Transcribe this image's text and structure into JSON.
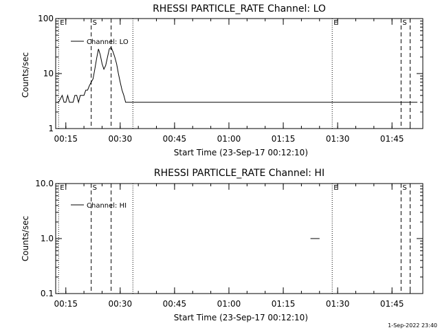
{
  "footer": {
    "stamp": "1-Sep-2022 23:40"
  },
  "chart_data": [
    {
      "type": "line",
      "title": "RHESSI PARTICLE_RATE Channel: LO",
      "xlabel": "Start Time (23-Sep-17 00:12:10)",
      "ylabel": "Counts/sec",
      "yscale": "log",
      "ylim": [
        1,
        100
      ],
      "y_ticks": [
        {
          "v": 1,
          "label": "1"
        },
        {
          "v": 10,
          "label": "10"
        },
        {
          "v": 100,
          "label": "100"
        }
      ],
      "xlim_min": [
        12.2,
        113.5
      ],
      "x_ticks": [
        {
          "v": 15,
          "label": "00:15"
        },
        {
          "v": 30,
          "label": "00:30"
        },
        {
          "v": 45,
          "label": "00:45"
        },
        {
          "v": 60,
          "label": "01:00"
        },
        {
          "v": 75,
          "label": "01:15"
        },
        {
          "v": 90,
          "label": "01:30"
        },
        {
          "v": 105,
          "label": "01:45"
        }
      ],
      "legend": {
        "label": "Channel: LO",
        "placement": "top-left"
      },
      "markers": [
        {
          "x": 13.0,
          "style": "dotted",
          "label": "E"
        },
        {
          "x": 22.0,
          "style": "dashed",
          "label": "S"
        },
        {
          "x": 27.5,
          "style": "dashed",
          "label": ""
        },
        {
          "x": 33.5,
          "style": "dotted",
          "label": ""
        },
        {
          "x": 88.5,
          "style": "dotted",
          "label": "E"
        },
        {
          "x": 107.5,
          "style": "dashed",
          "label": "S"
        },
        {
          "x": 110.0,
          "style": "dashed",
          "label": ""
        }
      ],
      "series": [
        {
          "name": "Channel: LO",
          "x": [
            12.5,
            13,
            14,
            14.5,
            15,
            15.5,
            16,
            17,
            17.5,
            18,
            18.5,
            19,
            19.5,
            20,
            20.5,
            21,
            21.5,
            22,
            22.5,
            23,
            23.5,
            24,
            24.5,
            25,
            25.5,
            26,
            26.5,
            27,
            27.5,
            28,
            28.5,
            29,
            29.5,
            30,
            30.5,
            31,
            31.5,
            32,
            32.5,
            33,
            33.5,
            34,
            34.5,
            35,
            36,
            37,
            38,
            39,
            40,
            41,
            42,
            43,
            44,
            45,
            46,
            47,
            48,
            49,
            50,
            51,
            52,
            53,
            54,
            55,
            56,
            57,
            58,
            59,
            60,
            61,
            62,
            63,
            64,
            65,
            66,
            67,
            68,
            69,
            70,
            71,
            72,
            73,
            74,
            75,
            76,
            77,
            78,
            79,
            80,
            81,
            82,
            83,
            84,
            85,
            86,
            87,
            88,
            89,
            90,
            91,
            92,
            93,
            94,
            95,
            96,
            97,
            98,
            99,
            100,
            101,
            102,
            103,
            104,
            105,
            106,
            107,
            108,
            109,
            110,
            111,
            112
          ],
          "y": [
            3,
            3,
            4,
            3,
            3,
            4,
            3,
            3,
            4,
            4,
            3,
            4,
            4,
            4,
            5,
            5,
            6,
            7,
            8,
            12,
            19,
            28,
            22,
            15,
            12,
            14,
            20,
            28,
            30,
            25,
            20,
            15,
            10,
            7,
            5,
            4,
            3,
            3,
            3,
            3,
            3,
            3,
            3,
            3,
            3,
            3,
            3,
            3,
            3,
            3,
            3,
            3,
            3,
            3,
            3,
            3,
            3,
            3,
            3,
            3,
            3,
            3,
            3,
            3,
            3,
            3,
            3,
            3,
            3,
            3,
            3,
            3,
            3,
            3,
            3,
            3,
            3,
            3,
            3,
            3,
            3,
            3,
            3,
            3,
            3,
            3,
            3,
            3,
            3,
            3,
            3,
            3,
            3,
            3,
            3,
            3,
            3,
            3,
            3,
            3,
            3,
            3,
            3,
            3,
            3,
            3,
            3,
            3,
            3,
            3,
            3,
            3,
            3,
            3,
            3,
            3,
            3,
            3,
            3,
            3,
            3
          ]
        }
      ]
    },
    {
      "type": "line",
      "title": "RHESSI PARTICLE_RATE Channel: HI",
      "xlabel": "Start Time (23-Sep-17 00:12:10)",
      "ylabel": "Counts/sec",
      "yscale": "log",
      "ylim": [
        0.1,
        10
      ],
      "y_ticks": [
        {
          "v": 0.1,
          "label": "0.1"
        },
        {
          "v": 1,
          "label": "1.0"
        },
        {
          "v": 10,
          "label": "10.0"
        }
      ],
      "xlim_min": [
        12.2,
        113.5
      ],
      "x_ticks": [
        {
          "v": 15,
          "label": "00:15"
        },
        {
          "v": 30,
          "label": "00:30"
        },
        {
          "v": 45,
          "label": "00:45"
        },
        {
          "v": 60,
          "label": "01:00"
        },
        {
          "v": 75,
          "label": "01:15"
        },
        {
          "v": 90,
          "label": "01:30"
        },
        {
          "v": 105,
          "label": "01:45"
        }
      ],
      "legend": {
        "label": "Channel: HI",
        "placement": "top-left"
      },
      "markers": [
        {
          "x": 13.0,
          "style": "dotted",
          "label": "E"
        },
        {
          "x": 22.0,
          "style": "dashed",
          "label": "S"
        },
        {
          "x": 27.5,
          "style": "dashed",
          "label": ""
        },
        {
          "x": 33.5,
          "style": "dotted",
          "label": ""
        },
        {
          "x": 88.5,
          "style": "dotted",
          "label": "E"
        },
        {
          "x": 107.5,
          "style": "dashed",
          "label": "S"
        },
        {
          "x": 110.0,
          "style": "dashed",
          "label": ""
        }
      ],
      "series": [
        {
          "name": "Channel: HI",
          "x": [
            82.5,
            85.0
          ],
          "y": [
            1.0,
            1.0
          ]
        }
      ]
    }
  ]
}
